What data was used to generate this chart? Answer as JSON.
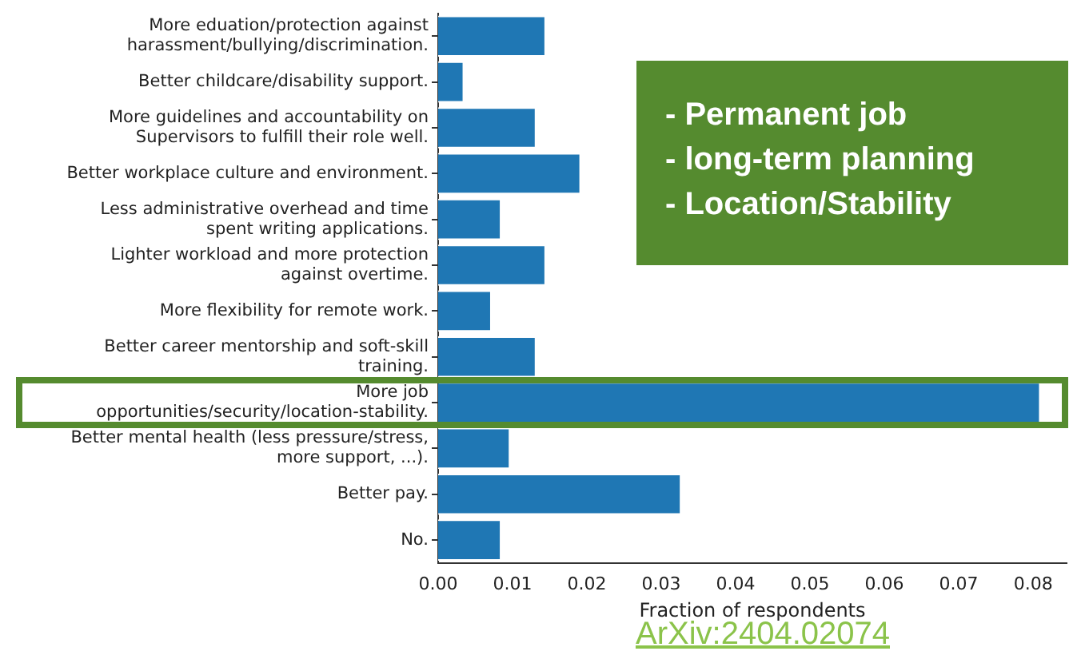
{
  "chart_data": {
    "type": "bar",
    "orientation": "horizontal",
    "xlabel": "Fraction of respondents",
    "categories": [
      "More eduation/protection against harassment/bullying/discrimination.",
      "Better childcare/disability support.",
      "More guidelines and accountability on Supervisors to fulfill their role well.",
      "Better workplace culture and environment.",
      "Less administrative overhead and time spent writing applications.",
      "Lighter workload and more protection against overtime.",
      "More flexibility for remote work.",
      "Better career mentorship and soft-skill training.",
      "More job opportunities/security/location-stability.",
      "Better mental health (less pressure/stress, more support, ...).",
      "Better pay.",
      "No."
    ],
    "values": [
      0.0145,
      0.0035,
      0.0132,
      0.0192,
      0.0085,
      0.0145,
      0.0072,
      0.0132,
      0.081,
      0.0097,
      0.0327,
      0.0085
    ],
    "color": "#1f77b4",
    "xlim": [
      0,
      0.0845
    ],
    "xticks": [
      {
        "value": 0,
        "label": "0.00"
      },
      {
        "value": 0.01,
        "label": "0.01"
      },
      {
        "value": 0.02,
        "label": "0.02"
      },
      {
        "value": 0.03,
        "label": "0.03"
      },
      {
        "value": 0.04,
        "label": "0.04"
      },
      {
        "value": 0.05,
        "label": "0.05"
      },
      {
        "value": 0.06,
        "label": "0.06"
      },
      {
        "value": 0.07,
        "label": "0.07"
      },
      {
        "value": 0.08,
        "label": "0.08"
      }
    ],
    "grid": false,
    "legend": false,
    "annotations": [
      "- Permanent job",
      "- long-term planning",
      "- Location/Stability",
      "ArXiv:2404.02074"
    ]
  }
}
